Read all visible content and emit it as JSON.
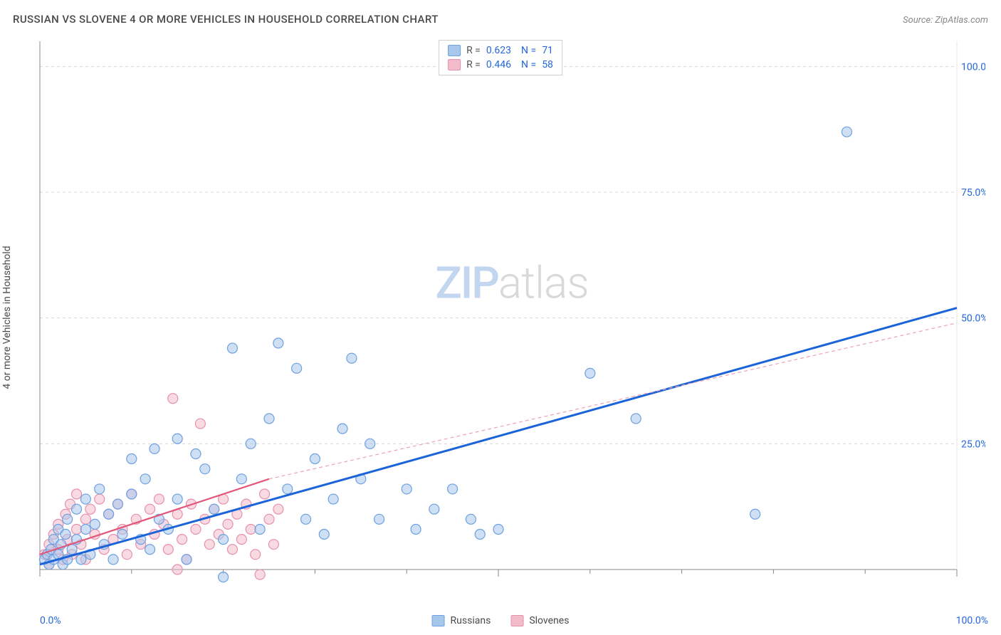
{
  "header": {
    "title": "RUSSIAN VS SLOVENE 4 OR MORE VEHICLES IN HOUSEHOLD CORRELATION CHART",
    "source": "Source: ZipAtlas.com"
  },
  "ylabel": "4 or more Vehicles in Household",
  "watermark": {
    "part1": "ZIP",
    "part2": "atlas"
  },
  "chart": {
    "type": "scatter",
    "xlim": [
      0,
      100
    ],
    "ylim": [
      0,
      105
    ],
    "background_color": "#ffffff",
    "gridline_color": "#d8d8d8",
    "axis_color": "#888888",
    "tick_color": "#888888",
    "tick_label_color": "#2466e0",
    "tick_label_fontsize": 14,
    "x_ticks_major": [
      0,
      50,
      100
    ],
    "x_ticks_minor": [
      10,
      20,
      30,
      40,
      60,
      70,
      80,
      90
    ],
    "y_ticks": [
      25,
      50,
      75,
      100
    ],
    "y_tick_labels": [
      "25.0%",
      "50.0%",
      "75.0%",
      "100.0%"
    ],
    "x_min_label": "0.0%",
    "x_max_label": "100.0%",
    "marker_radius": 7,
    "marker_opacity": 0.55,
    "series": [
      {
        "name": "Russians",
        "color_fill": "#a8c7ec",
        "color_stroke": "#6da0e0",
        "trend": {
          "x1": 0,
          "y1": 1,
          "x2": 100,
          "y2": 52,
          "color": "#1b63d8",
          "width": 3,
          "dash": "none"
        },
        "trend_extension": null,
        "points": [
          [
            0.5,
            2
          ],
          [
            0.8,
            3
          ],
          [
            1,
            1
          ],
          [
            1.2,
            4
          ],
          [
            1.5,
            2
          ],
          [
            1.5,
            6
          ],
          [
            2,
            3
          ],
          [
            2,
            8
          ],
          [
            2.3,
            5
          ],
          [
            2.5,
            1
          ],
          [
            2.8,
            7
          ],
          [
            3,
            2
          ],
          [
            3,
            10
          ],
          [
            3.5,
            4
          ],
          [
            4,
            12
          ],
          [
            4,
            6
          ],
          [
            4.5,
            2
          ],
          [
            5,
            14
          ],
          [
            5,
            8
          ],
          [
            5.5,
            3
          ],
          [
            6,
            9
          ],
          [
            6.5,
            16
          ],
          [
            7,
            5
          ],
          [
            7.5,
            11
          ],
          [
            8,
            2
          ],
          [
            8.5,
            13
          ],
          [
            9,
            7
          ],
          [
            10,
            15
          ],
          [
            10,
            22
          ],
          [
            11,
            6
          ],
          [
            11.5,
            18
          ],
          [
            12,
            4
          ],
          [
            12.5,
            24
          ],
          [
            13,
            10
          ],
          [
            14,
            8
          ],
          [
            15,
            26
          ],
          [
            15,
            14
          ],
          [
            16,
            2
          ],
          [
            17,
            23
          ],
          [
            18,
            20
          ],
          [
            19,
            12
          ],
          [
            20,
            6
          ],
          [
            20,
            -1.5
          ],
          [
            21,
            44
          ],
          [
            22,
            18
          ],
          [
            23,
            25
          ],
          [
            24,
            8
          ],
          [
            25,
            30
          ],
          [
            26,
            45
          ],
          [
            27,
            16
          ],
          [
            28,
            40
          ],
          [
            29,
            10
          ],
          [
            30,
            22
          ],
          [
            31,
            7
          ],
          [
            32,
            14
          ],
          [
            33,
            28
          ],
          [
            34,
            42
          ],
          [
            35,
            18
          ],
          [
            36,
            25
          ],
          [
            37,
            10
          ],
          [
            40,
            16
          ],
          [
            41,
            8
          ],
          [
            43,
            12
          ],
          [
            45,
            16
          ],
          [
            47,
            10
          ],
          [
            48,
            7
          ],
          [
            50,
            8
          ],
          [
            60,
            39
          ],
          [
            65,
            30
          ],
          [
            78,
            11
          ],
          [
            88,
            87
          ]
        ]
      },
      {
        "name": "Slovenes",
        "color_fill": "#f3bccb",
        "color_stroke": "#e890ab",
        "trend": {
          "x1": 0,
          "y1": 3,
          "x2": 25,
          "y2": 18,
          "color": "#e35679",
          "width": 2.2,
          "dash": "none"
        },
        "trend_extension": {
          "x1": 25,
          "y1": 18,
          "x2": 100,
          "y2": 49,
          "color": "#eba2b4",
          "width": 1.2,
          "dash": "5,4"
        },
        "points": [
          [
            0.5,
            3
          ],
          [
            1,
            5
          ],
          [
            1,
            1
          ],
          [
            1.5,
            7
          ],
          [
            2,
            4
          ],
          [
            2,
            9
          ],
          [
            2.5,
            2
          ],
          [
            2.8,
            11
          ],
          [
            3,
            6
          ],
          [
            3.3,
            13
          ],
          [
            3.5,
            3
          ],
          [
            4,
            8
          ],
          [
            4,
            15
          ],
          [
            4.5,
            5
          ],
          [
            5,
            10
          ],
          [
            5,
            2
          ],
          [
            5.5,
            12
          ],
          [
            6,
            7
          ],
          [
            6.5,
            14
          ],
          [
            7,
            4
          ],
          [
            7.5,
            11
          ],
          [
            8,
            6
          ],
          [
            8.5,
            13
          ],
          [
            9,
            8
          ],
          [
            9.5,
            3
          ],
          [
            10,
            15
          ],
          [
            10.5,
            10
          ],
          [
            11,
            5
          ],
          [
            12,
            12
          ],
          [
            12.5,
            7
          ],
          [
            13,
            14
          ],
          [
            13.5,
            9
          ],
          [
            14,
            4
          ],
          [
            14.5,
            34
          ],
          [
            15,
            11
          ],
          [
            15.5,
            6
          ],
          [
            16,
            2
          ],
          [
            16.5,
            13
          ],
          [
            17,
            8
          ],
          [
            17.5,
            29
          ],
          [
            18,
            10
          ],
          [
            18.5,
            5
          ],
          [
            19,
            12
          ],
          [
            19.5,
            7
          ],
          [
            20,
            14
          ],
          [
            20.5,
            9
          ],
          [
            21,
            4
          ],
          [
            21.5,
            11
          ],
          [
            22,
            6
          ],
          [
            22.5,
            13
          ],
          [
            23,
            8
          ],
          [
            23.5,
            3
          ],
          [
            24,
            -1
          ],
          [
            24.5,
            15
          ],
          [
            25,
            10
          ],
          [
            25.5,
            5
          ],
          [
            26,
            12
          ],
          [
            15,
            0
          ]
        ]
      }
    ]
  },
  "stats_box": {
    "rows": [
      {
        "swatch_fill": "#a8c7ec",
        "swatch_stroke": "#6da0e0",
        "r_label": "R =",
        "r_value": "0.623",
        "n_label": "N =",
        "n_value": "71"
      },
      {
        "swatch_fill": "#f3bccb",
        "swatch_stroke": "#e890ab",
        "r_label": "R =",
        "r_value": "0.446",
        "n_label": "N =",
        "n_value": "58"
      }
    ]
  },
  "bottom_legend": {
    "items": [
      {
        "swatch_fill": "#a8c7ec",
        "swatch_stroke": "#6da0e0",
        "label": "Russians"
      },
      {
        "swatch_fill": "#f3bccb",
        "swatch_stroke": "#e890ab",
        "label": "Slovenes"
      }
    ]
  }
}
